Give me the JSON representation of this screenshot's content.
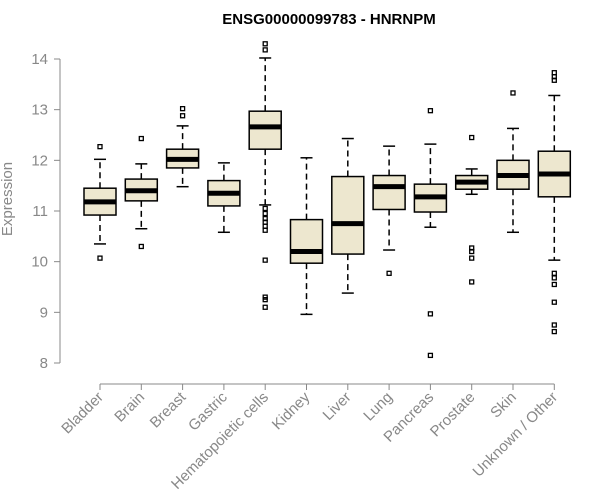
{
  "chart_data": {
    "type": "box",
    "title": "ENSG00000099783 - HNRNPM",
    "xlabel": "",
    "ylabel": "Expression",
    "ylim": [
      8,
      14
    ],
    "yticks": [
      8,
      9,
      10,
      11,
      12,
      13,
      14
    ],
    "grid": false,
    "colors": {
      "box_fill": "#ede7cf",
      "box_stroke": "#000000",
      "axis": "#888888"
    },
    "categories": [
      "Bladder",
      "Brain",
      "Breast",
      "Gastric",
      "Hematopoietic cells",
      "Kidney",
      "Liver",
      "Lung",
      "Pancreas",
      "Prostate",
      "Skin",
      "Unknown / Other"
    ],
    "boxes": [
      {
        "whisker_low": 10.35,
        "q1": 10.92,
        "median": 11.18,
        "q3": 11.45,
        "whisker_high": 12.02,
        "outliers": [
          10.07,
          12.27
        ]
      },
      {
        "whisker_low": 10.65,
        "q1": 11.2,
        "median": 11.4,
        "q3": 11.63,
        "whisker_high": 11.93,
        "outliers": [
          10.3,
          12.43
        ]
      },
      {
        "whisker_low": 11.48,
        "q1": 11.85,
        "median": 12.02,
        "q3": 12.22,
        "whisker_high": 12.68,
        "outliers": [
          12.88,
          13.02
        ]
      },
      {
        "whisker_low": 10.58,
        "q1": 11.1,
        "median": 11.35,
        "q3": 11.6,
        "whisker_high": 11.95,
        "outliers": []
      },
      {
        "whisker_low": 11.12,
        "q1": 12.22,
        "median": 12.66,
        "q3": 12.97,
        "whisker_high": 14.02,
        "outliers": [
          14.18,
          14.3,
          11.05,
          10.95,
          10.85,
          10.78,
          10.7,
          10.62,
          10.03,
          9.3,
          9.25,
          9.1
        ]
      },
      {
        "whisker_low": 8.96,
        "q1": 9.97,
        "median": 10.2,
        "q3": 10.83,
        "whisker_high": 12.05,
        "outliers": []
      },
      {
        "whisker_low": 9.38,
        "q1": 10.15,
        "median": 10.75,
        "q3": 11.68,
        "whisker_high": 12.43,
        "outliers": []
      },
      {
        "whisker_low": 10.23,
        "q1": 11.03,
        "median": 11.48,
        "q3": 11.7,
        "whisker_high": 12.28,
        "outliers": [
          9.77
        ]
      },
      {
        "whisker_low": 10.68,
        "q1": 10.98,
        "median": 11.28,
        "q3": 11.53,
        "whisker_high": 12.32,
        "outliers": [
          12.98,
          8.97,
          8.15
        ]
      },
      {
        "whisker_low": 11.33,
        "q1": 11.43,
        "median": 11.57,
        "q3": 11.7,
        "whisker_high": 11.83,
        "outliers": [
          12.45,
          10.27,
          10.2,
          10.07,
          9.6
        ]
      },
      {
        "whisker_low": 10.58,
        "q1": 11.43,
        "median": 11.7,
        "q3": 12.0,
        "whisker_high": 12.63,
        "outliers": [
          13.33
        ]
      },
      {
        "whisker_low": 10.03,
        "q1": 11.28,
        "median": 11.73,
        "q3": 12.18,
        "whisker_high": 13.28,
        "outliers": [
          13.73,
          13.65,
          13.58,
          9.77,
          9.68,
          9.55,
          9.2,
          8.75,
          8.62
        ]
      }
    ]
  }
}
